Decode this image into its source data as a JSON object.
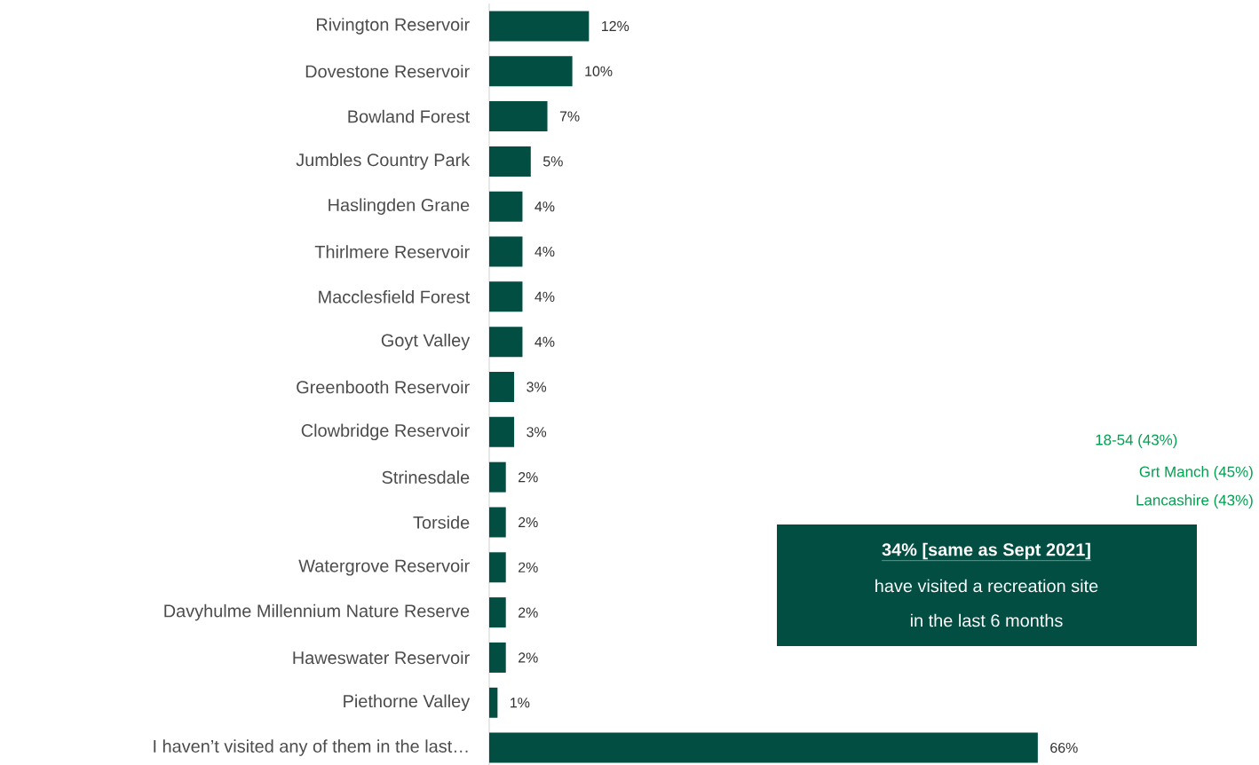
{
  "chart_data": {
    "type": "bar",
    "orientation": "horizontal",
    "categories": [
      "Rivington Reservoir",
      "Dovestone Reservoir",
      "Bowland Forest",
      "Jumbles Country Park",
      "Haslingden Grane",
      "Thirlmere Reservoir",
      "Macclesfield Forest",
      "Goyt Valley",
      "Greenbooth Reservoir",
      "Clowbridge Reservoir",
      "Strinesdale",
      "Torside",
      "Watergrove Reservoir",
      "Davyhulme Millennium Nature Reserve",
      "Haweswater Reservoir",
      "Piethorne Valley",
      "I haven’t visited any of them in the last…"
    ],
    "values": [
      12,
      10,
      7,
      5,
      4,
      4,
      4,
      4,
      3,
      3,
      2,
      2,
      2,
      2,
      2,
      1,
      66
    ],
    "value_labels": [
      "12%",
      "10%",
      "7%",
      "5%",
      "4%",
      "4%",
      "4%",
      "4%",
      "3%",
      "3%",
      "2%",
      "2%",
      "2%",
      "2%",
      "2%",
      "1%",
      "66%"
    ],
    "color": "#034e42",
    "annotations": [
      "34% [same as Sept 2021]",
      "have visited a recreation site",
      "in the last 6 months",
      "18-54 (43%)",
      "Grt Manch (45%)",
      "Lancashire (43%)"
    ]
  }
}
